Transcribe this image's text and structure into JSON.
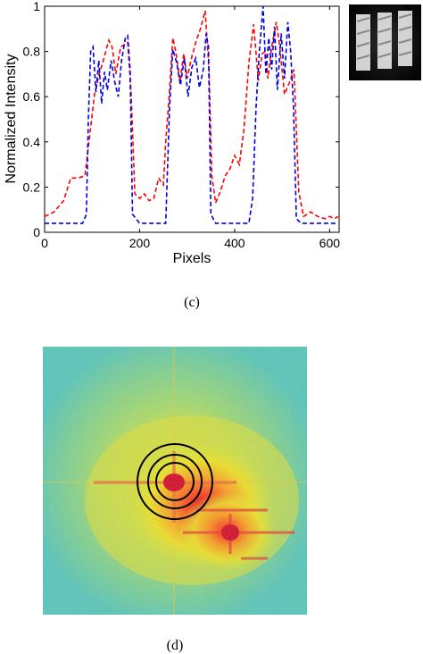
{
  "chart_data": [
    {
      "panel": "c",
      "type": "line",
      "xlabel": "Pixels",
      "ylabel": "Normalized Intensity",
      "xlim": [
        0,
        620
      ],
      "ylim": [
        0,
        1
      ],
      "xticks": [
        0,
        200,
        400,
        600
      ],
      "yticks": [
        0,
        0.2,
        0.4,
        0.6,
        0.8,
        1
      ],
      "grid": false,
      "legend": "none",
      "caption": "(c)",
      "inset": "three-bar target image (top-right)",
      "series": [
        {
          "color": "#ff0000",
          "linestyle": "dashed",
          "x": [
            0,
            20,
            40,
            55,
            70,
            85,
            95,
            105,
            115,
            125,
            135,
            142,
            150,
            160,
            175,
            182,
            190,
            200,
            210,
            220,
            230,
            240,
            250,
            255,
            262,
            270,
            277,
            285,
            293,
            300,
            308,
            318,
            328,
            338,
            346,
            352,
            360,
            370,
            380,
            390,
            400,
            410,
            420,
            430,
            440,
            450,
            458,
            465,
            470,
            478,
            488,
            495,
            505,
            515,
            525,
            535,
            545,
            560,
            575,
            590,
            600,
            610,
            618
          ],
          "y": [
            0.07,
            0.09,
            0.14,
            0.24,
            0.24,
            0.25,
            0.43,
            0.61,
            0.7,
            0.77,
            0.85,
            0.82,
            0.7,
            0.82,
            0.84,
            0.62,
            0.17,
            0.15,
            0.17,
            0.14,
            0.15,
            0.24,
            0.21,
            0.4,
            0.6,
            0.86,
            0.79,
            0.67,
            0.79,
            0.68,
            0.76,
            0.84,
            0.9,
            0.98,
            0.72,
            0.25,
            0.13,
            0.18,
            0.25,
            0.28,
            0.34,
            0.3,
            0.46,
            0.75,
            0.92,
            0.67,
            0.79,
            0.8,
            0.68,
            0.82,
            0.93,
            0.82,
            0.61,
            0.66,
            0.72,
            0.18,
            0.07,
            0.09,
            0.07,
            0.06,
            0.07,
            0.06,
            0.07
          ]
        },
        {
          "color": "#0000dd",
          "linestyle": "dashed",
          "x": [
            0,
            20,
            40,
            60,
            80,
            88,
            92,
            97,
            102,
            108,
            114,
            120,
            126,
            132,
            140,
            148,
            155,
            162,
            170,
            175,
            180,
            185,
            200,
            240,
            250,
            255,
            263,
            270,
            278,
            286,
            294,
            302,
            310,
            318,
            326,
            334,
            340,
            345,
            350,
            360,
            400,
            430,
            438,
            445,
            452,
            460,
            466,
            472,
            478,
            484,
            490,
            498,
            505,
            512,
            518,
            524,
            530,
            540,
            600,
            618
          ],
          "y": [
            0.04,
            0.04,
            0.04,
            0.04,
            0.04,
            0.08,
            0.5,
            0.8,
            0.82,
            0.62,
            0.76,
            0.57,
            0.71,
            0.63,
            0.76,
            0.66,
            0.6,
            0.76,
            0.86,
            0.87,
            0.72,
            0.08,
            0.04,
            0.04,
            0.04,
            0.04,
            0.55,
            0.81,
            0.75,
            0.65,
            0.77,
            0.6,
            0.73,
            0.77,
            0.64,
            0.72,
            0.88,
            0.82,
            0.08,
            0.04,
            0.04,
            0.04,
            0.15,
            0.55,
            0.8,
            1.0,
            0.7,
            0.86,
            0.72,
            0.91,
            0.63,
            0.88,
            0.68,
            0.93,
            0.8,
            0.55,
            0.06,
            0.04,
            0.04,
            0.04
          ]
        }
      ]
    },
    {
      "panel": "d",
      "type": "heatmap",
      "colormap": "jet",
      "caption": "(d)",
      "overlay": "three concentric black circles around the central peak"
    }
  ]
}
